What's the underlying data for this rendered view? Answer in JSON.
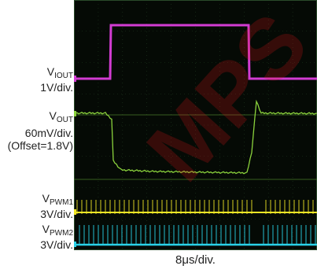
{
  "chart_data": {
    "type": "line",
    "title": "",
    "xlabel": "8μs/div.",
    "grid": true,
    "channels": [
      {
        "name": "VIOUT",
        "label_main": "V",
        "label_sub": "IOUT",
        "scale": "1V/div.",
        "color": "#d23cd2",
        "points": [
          [
            0,
            0
          ],
          [
            46,
            0
          ],
          [
            47,
            1.8
          ],
          [
            222,
            1.8
          ],
          [
            223,
            0
          ],
          [
            309,
            0
          ]
        ]
      },
      {
        "name": "VOUT",
        "label_main": "V",
        "label_sub": "OUT",
        "scale": "60mV/div.",
        "offset_note": "(Offset=1.8V)",
        "color": "#8ad23c",
        "points": [
          [
            0,
            0
          ],
          [
            40,
            0
          ],
          [
            48,
            -0.4
          ],
          [
            50,
            -3.2
          ],
          [
            60,
            -3.8
          ],
          [
            100,
            -3.9
          ],
          [
            220,
            -4.0
          ],
          [
            226,
            -2.6
          ],
          [
            232,
            0.8
          ],
          [
            238,
            0
          ],
          [
            309,
            0
          ]
        ]
      },
      {
        "name": "VPWM1",
        "label_main": "V",
        "label_sub": "PWM1",
        "scale": "3V/div.",
        "color": "#f0e626",
        "pattern": "pulses"
      },
      {
        "name": "VPWM2",
        "label_main": "V",
        "label_sub": "PWM2",
        "scale": "3V/div.",
        "color": "#2ad2e8",
        "pattern": "pulses"
      }
    ]
  },
  "watermark": {
    "text": "MPS",
    "color": "#e4141b"
  }
}
